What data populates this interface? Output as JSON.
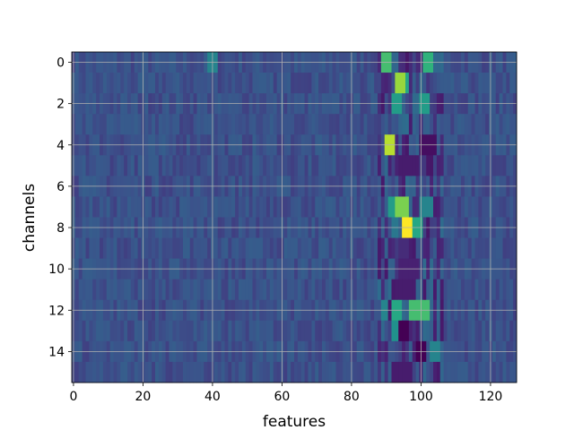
{
  "chart_data": {
    "type": "heatmap",
    "title": "",
    "xlabel": "features",
    "ylabel": "channels",
    "x_range": [
      -0.5,
      127.5
    ],
    "y_range": [
      -0.5,
      15.5
    ],
    "xticks": [
      0,
      20,
      40,
      60,
      80,
      100,
      120
    ],
    "yticks": [
      0,
      2,
      4,
      6,
      8,
      10,
      12,
      14
    ],
    "xtick_labels": [
      "0",
      "20",
      "40",
      "60",
      "80",
      "100",
      "120"
    ],
    "ytick_labels": [
      "0",
      "2",
      "4",
      "6",
      "8",
      "10",
      "12",
      "14"
    ],
    "y_inverted": true,
    "grid": true,
    "colormap": "viridis",
    "n_rows": 16,
    "n_cols": 128,
    "background_level": 0.25,
    "hotspots": [
      {
        "row": 0,
        "cols": [
          89,
          91
        ],
        "value": 0.7
      },
      {
        "row": 0,
        "cols": [
          101,
          103
        ],
        "value": 0.65
      },
      {
        "row": 0,
        "cols": [
          39,
          41
        ],
        "value": 0.45
      },
      {
        "row": 1,
        "cols": [
          93,
          95
        ],
        "value": 0.85
      },
      {
        "row": 1,
        "cols": [
          96,
          96
        ],
        "value": 0.6
      },
      {
        "row": 2,
        "cols": [
          92,
          94
        ],
        "value": 0.55
      },
      {
        "row": 2,
        "cols": [
          100,
          102
        ],
        "value": 0.55
      },
      {
        "row": 4,
        "cols": [
          90,
          92
        ],
        "value": 0.9
      },
      {
        "row": 4,
        "cols": [
          100,
          104
        ],
        "value": 0.05
      },
      {
        "row": 5,
        "cols": [
          94,
          99
        ],
        "value": 0.1
      },
      {
        "row": 7,
        "cols": [
          93,
          96
        ],
        "value": 0.8
      },
      {
        "row": 7,
        "cols": [
          91,
          92
        ],
        "value": 0.55
      },
      {
        "row": 7,
        "cols": [
          100,
          103
        ],
        "value": 0.45
      },
      {
        "row": 8,
        "cols": [
          95,
          97
        ],
        "value": 1.0
      },
      {
        "row": 8,
        "cols": [
          98,
          100
        ],
        "value": 0.6
      },
      {
        "row": 8,
        "cols": [
          92,
          93
        ],
        "value": 0.4
      },
      {
        "row": 9,
        "cols": [
          94,
          96
        ],
        "value": 0.15
      },
      {
        "row": 10,
        "cols": [
          94,
          99
        ],
        "value": 0.12
      },
      {
        "row": 11,
        "cols": [
          93,
          98
        ],
        "value": 0.1
      },
      {
        "row": 12,
        "cols": [
          92,
          94
        ],
        "value": 0.6
      },
      {
        "row": 12,
        "cols": [
          97,
          102
        ],
        "value": 0.7
      },
      {
        "row": 12,
        "cols": [
          89,
          90
        ],
        "value": 0.45
      },
      {
        "row": 13,
        "cols": [
          94,
          96
        ],
        "value": 0.0
      },
      {
        "row": 13,
        "cols": [
          92,
          93
        ],
        "value": 0.5
      },
      {
        "row": 14,
        "cols": [
          99,
          101
        ],
        "value": 0.0
      },
      {
        "row": 14,
        "cols": [
          103,
          105
        ],
        "value": 0.45
      },
      {
        "row": 15,
        "cols": [
          92,
          97
        ],
        "value": 0.1
      }
    ]
  }
}
